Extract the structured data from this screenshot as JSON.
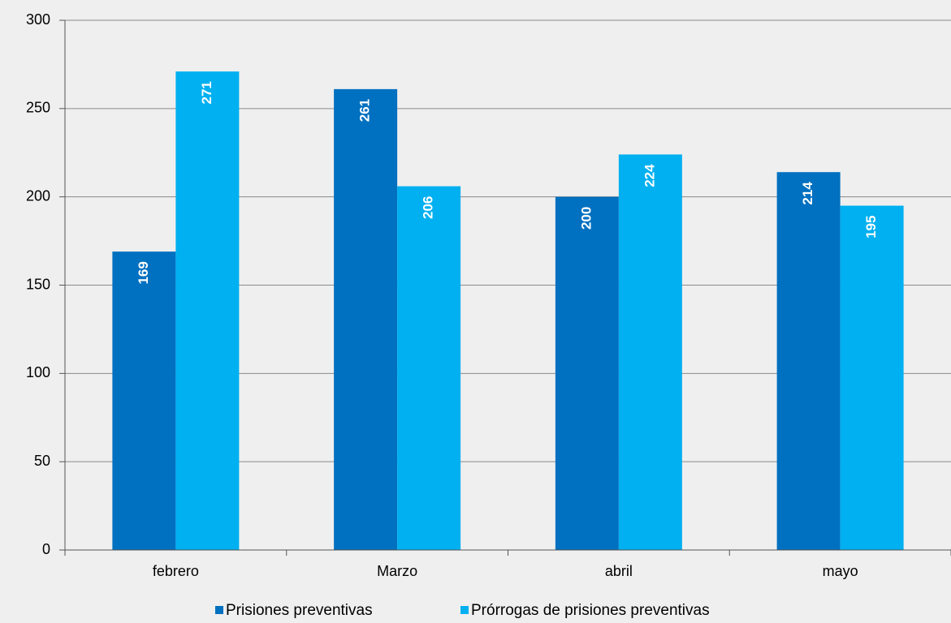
{
  "chart_data": {
    "type": "bar",
    "categories": [
      "febrero",
      "Marzo",
      "abril",
      "mayo"
    ],
    "series": [
      {
        "name": "Prisiones preventivas",
        "color": "#0070c0",
        "values": [
          169,
          261,
          200,
          214
        ]
      },
      {
        "name": "Prórrogas de prisiones preventivas",
        "color": "#00b0f0",
        "values": [
          271,
          206,
          224,
          195
        ]
      }
    ],
    "ylim": [
      0,
      300
    ],
    "yticks": [
      0,
      50,
      100,
      150,
      200,
      250,
      300
    ],
    "grid": true,
    "legend": "bottom",
    "data_labels": true
  }
}
